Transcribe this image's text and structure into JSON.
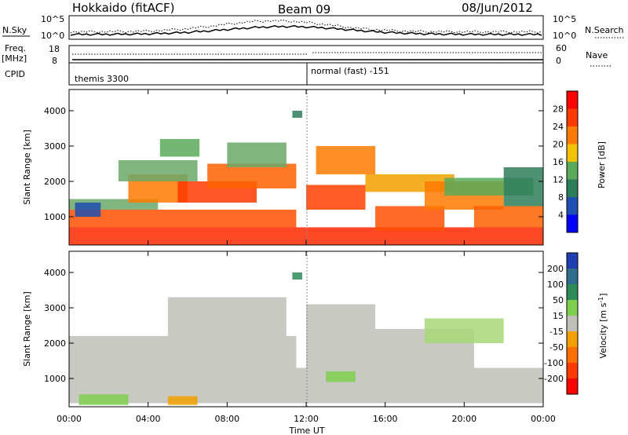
{
  "header": {
    "station": "Hokkaido (fitACF)",
    "beam": "Beam 09",
    "date": "08/Jun/2012"
  },
  "top_panels": {
    "nsky_label": "N.Sky",
    "nsky_ticks": [
      "10^5",
      "10^0"
    ],
    "nsearch_label": "N.Search",
    "nsearch_ticks": [
      "10^5",
      "10^0"
    ],
    "freq_label_1": "Freq.",
    "freq_label_2": "[MHz]",
    "freq_ticks": [
      "18",
      "8"
    ],
    "nave_label": "Nave",
    "nave_ticks": [
      "60",
      "0"
    ],
    "cpid_label": "CPID",
    "cpid_segments": [
      {
        "label": "themis 3300",
        "start_hour": 0
      },
      {
        "label": "normal (fast) -151",
        "start_hour": 12
      }
    ]
  },
  "chart_data": [
    {
      "type": "heatmap",
      "name": "Power",
      "xlabel": "Time UT",
      "ylabel": "Slant Range [km]",
      "x_ticks": [
        "00:00",
        "04:00",
        "08:00",
        "12:00",
        "16:00",
        "20:00",
        "00:00"
      ],
      "xlim_hours": [
        0,
        24
      ],
      "ylim_km": [
        200,
        4600
      ],
      "y_ticks": [
        1000,
        2000,
        3000,
        4000
      ],
      "colorbar": {
        "label": "Power [dB]",
        "ticks": [
          "28",
          "24",
          "20",
          "16",
          "12",
          "8",
          "4"
        ],
        "colors": [
          "#ff0000",
          "#ff3a00",
          "#ff7a00",
          "#f2c200",
          "#5aaa5a",
          "#2e7d5a",
          "#1f4fb0",
          "#0000ff"
        ]
      },
      "regions": [
        {
          "t0": 0.0,
          "t1": 24.0,
          "r0": 200,
          "r1": 700,
          "color": "#ff2800"
        },
        {
          "t0": 0.0,
          "t1": 11.5,
          "r0": 700,
          "r1": 1200,
          "color": "#ff5000"
        },
        {
          "t0": 0.0,
          "t1": 4.5,
          "r0": 1200,
          "r1": 1500,
          "color": "#6aa86a"
        },
        {
          "t0": 0.3,
          "t1": 1.6,
          "r0": 1000,
          "r1": 1400,
          "color": "#1f4fb0"
        },
        {
          "t0": 3.0,
          "t1": 6.0,
          "r0": 1400,
          "r1": 2200,
          "color": "#ff7a00"
        },
        {
          "t0": 5.5,
          "t1": 9.5,
          "r0": 1400,
          "r1": 2000,
          "color": "#ff3a00"
        },
        {
          "t0": 7.0,
          "t1": 11.5,
          "r0": 1800,
          "r1": 2500,
          "color": "#ff6000"
        },
        {
          "t0": 8.0,
          "t1": 11.0,
          "r0": 2400,
          "r1": 3100,
          "color": "#6aa86a"
        },
        {
          "t0": 2.5,
          "t1": 6.5,
          "r0": 2000,
          "r1": 2600,
          "color": "#6aa86a"
        },
        {
          "t0": 4.6,
          "t1": 6.6,
          "r0": 2700,
          "r1": 3200,
          "color": "#5aaa5a"
        },
        {
          "t0": 11.3,
          "t1": 11.8,
          "r0": 3800,
          "r1": 4000,
          "color": "#2e7d5a"
        },
        {
          "t0": 12.0,
          "t1": 15.0,
          "r0": 1200,
          "r1": 1900,
          "color": "#ff4000"
        },
        {
          "t0": 12.5,
          "t1": 15.5,
          "r0": 2200,
          "r1": 3000,
          "color": "#ff7a00"
        },
        {
          "t0": 15.5,
          "t1": 19.0,
          "r0": 600,
          "r1": 1300,
          "color": "#ff5000"
        },
        {
          "t0": 15.0,
          "t1": 19.5,
          "r0": 1700,
          "r1": 2200,
          "color": "#f2a000"
        },
        {
          "t0": 18.0,
          "t1": 22.0,
          "r0": 1200,
          "r1": 2000,
          "color": "#ff7a00"
        },
        {
          "t0": 19.0,
          "t1": 23.5,
          "r0": 1600,
          "r1": 2100,
          "color": "#5aaa5a"
        },
        {
          "t0": 20.5,
          "t1": 24.0,
          "r0": 700,
          "r1": 1300,
          "color": "#ff6000"
        },
        {
          "t0": 22.0,
          "t1": 24.0,
          "r0": 1300,
          "r1": 2400,
          "color": "#2e7d5a"
        }
      ]
    },
    {
      "type": "heatmap",
      "name": "Velocity",
      "xlabel": "Time UT",
      "ylabel": "Slant Range [km]",
      "x_ticks": [
        "00:00",
        "04:00",
        "08:00",
        "12:00",
        "16:00",
        "20:00",
        "00:00"
      ],
      "xlim_hours": [
        0,
        24
      ],
      "ylim_km": [
        200,
        4600
      ],
      "y_ticks": [
        1000,
        2000,
        3000,
        4000
      ],
      "colorbar": {
        "label": "Velocity [m s^-1]",
        "ticks": [
          "200",
          "100",
          "50",
          "15",
          "-15",
          "-50",
          "-100",
          "-200"
        ],
        "colors": [
          "#1f3fb0",
          "#2e6d8a",
          "#2e8b57",
          "#7fcf4f",
          "#c0c0b8",
          "#f2a000",
          "#ff7000",
          "#ff3a00",
          "#ff0000"
        ]
      },
      "regions": [
        {
          "t0": 0.0,
          "t1": 24.0,
          "r0": 300,
          "r1": 1300,
          "color": "#c0c0b8"
        },
        {
          "t0": 0.0,
          "t1": 11.5,
          "r0": 1300,
          "r1": 2200,
          "color": "#c0c0b8"
        },
        {
          "t0": 5.0,
          "t1": 11.0,
          "r0": 2200,
          "r1": 3300,
          "color": "#c0c0b8"
        },
        {
          "t0": 12.0,
          "t1": 15.5,
          "r0": 1300,
          "r1": 3100,
          "color": "#c0c0b8"
        },
        {
          "t0": 15.5,
          "t1": 20.5,
          "r0": 1300,
          "r1": 2400,
          "color": "#c0c0b8"
        },
        {
          "t0": 18.0,
          "t1": 22.0,
          "r0": 2000,
          "r1": 2700,
          "color": "#a8d878"
        },
        {
          "t0": 0.5,
          "t1": 3.0,
          "r0": 250,
          "r1": 550,
          "color": "#7fcf4f"
        },
        {
          "t0": 5.0,
          "t1": 6.5,
          "r0": 250,
          "r1": 500,
          "color": "#f2a000"
        },
        {
          "t0": 11.3,
          "t1": 11.8,
          "r0": 3800,
          "r1": 4000,
          "color": "#2e8b57"
        },
        {
          "t0": 13.0,
          "t1": 14.5,
          "r0": 900,
          "r1": 1200,
          "color": "#7fcf4f"
        }
      ]
    }
  ]
}
